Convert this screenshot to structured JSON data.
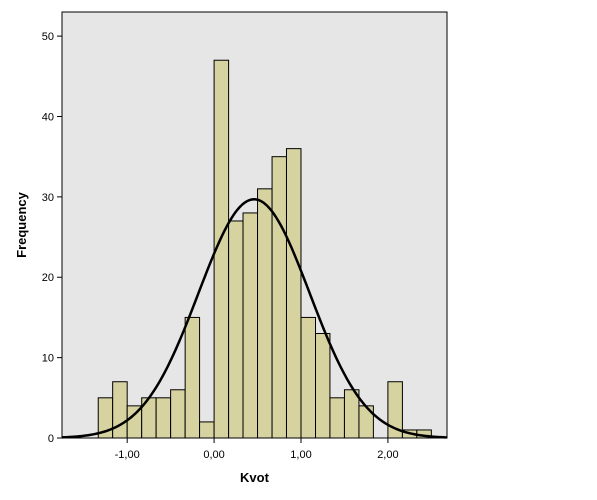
{
  "chart_data": {
    "type": "bar",
    "subtype": "histogram-with-normal-curve",
    "xlabel": "Kvot",
    "ylabel": "Frequency",
    "xlim": [
      -1.75,
      2.68
    ],
    "ylim": [
      0,
      53
    ],
    "bin_width": 0.167,
    "bins": [
      {
        "start": -1.333,
        "end": -1.167,
        "count": 5
      },
      {
        "start": -1.167,
        "end": -1.0,
        "count": 7
      },
      {
        "start": -1.0,
        "end": -0.833,
        "count": 4
      },
      {
        "start": -0.833,
        "end": -0.667,
        "count": 5
      },
      {
        "start": -0.667,
        "end": -0.5,
        "count": 5
      },
      {
        "start": -0.5,
        "end": -0.333,
        "count": 6
      },
      {
        "start": -0.333,
        "end": -0.167,
        "count": 15
      },
      {
        "start": -0.167,
        "end": 0.0,
        "count": 2
      },
      {
        "start": 0.0,
        "end": 0.167,
        "count": 47
      },
      {
        "start": 0.167,
        "end": 0.333,
        "count": 27
      },
      {
        "start": 0.333,
        "end": 0.5,
        "count": 28
      },
      {
        "start": 0.5,
        "end": 0.667,
        "count": 31
      },
      {
        "start": 0.667,
        "end": 0.833,
        "count": 35
      },
      {
        "start": 0.833,
        "end": 1.0,
        "count": 36
      },
      {
        "start": 1.0,
        "end": 1.167,
        "count": 15
      },
      {
        "start": 1.167,
        "end": 1.333,
        "count": 13
      },
      {
        "start": 1.333,
        "end": 1.5,
        "count": 5
      },
      {
        "start": 1.5,
        "end": 1.667,
        "count": 6
      },
      {
        "start": 1.667,
        "end": 1.833,
        "count": 4
      },
      {
        "start": 1.833,
        "end": 2.0,
        "count": 0
      },
      {
        "start": 2.0,
        "end": 2.167,
        "count": 7
      },
      {
        "start": 2.167,
        "end": 2.333,
        "count": 1
      },
      {
        "start": 2.333,
        "end": 2.5,
        "count": 1
      }
    ],
    "normal_curve": {
      "mean": 0.46,
      "sd": 0.64,
      "peak": 29.7
    },
    "x_ticks": [
      {
        "value": -1.0,
        "label": "-1,00"
      },
      {
        "value": 0.0,
        "label": "0,00"
      },
      {
        "value": 1.0,
        "label": "1,00"
      },
      {
        "value": 2.0,
        "label": "2,00"
      }
    ],
    "y_ticks": [
      {
        "value": 0,
        "label": "0"
      },
      {
        "value": 10,
        "label": "10"
      },
      {
        "value": 20,
        "label": "20"
      },
      {
        "value": 30,
        "label": "30"
      },
      {
        "value": 40,
        "label": "40"
      },
      {
        "value": 50,
        "label": "50"
      }
    ],
    "grid": false,
    "legend": "none"
  },
  "colors": {
    "plot_background": "#e6e6e6",
    "bar_fill": "#d6d3a0",
    "bar_stroke": "#000000",
    "curve": "#000000",
    "axis": "#000000"
  }
}
